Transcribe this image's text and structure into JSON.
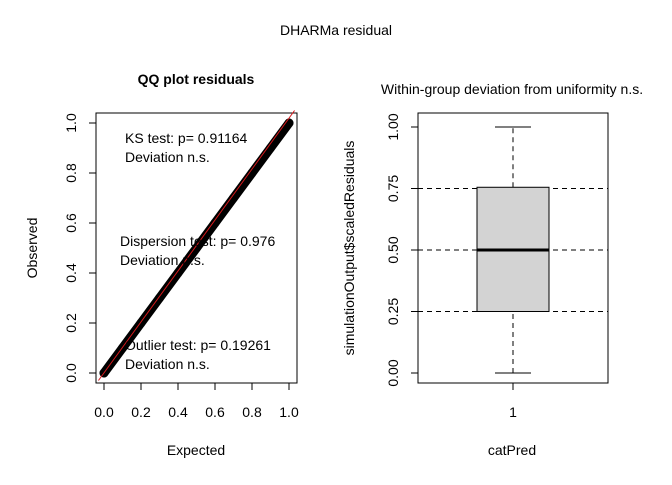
{
  "figure": {
    "title": "DHARMa residual"
  },
  "chart_data": [
    {
      "type": "scatter",
      "title": "QQ plot residuals",
      "xlabel": "Expected",
      "ylabel": "Observed",
      "xlim": [
        0,
        1
      ],
      "ylim": [
        0,
        1
      ],
      "x_ticks": [
        "0.0",
        "0.2",
        "0.4",
        "0.6",
        "0.8",
        "1.0"
      ],
      "y_ticks": [
        "0.0",
        "0.2",
        "0.4",
        "0.6",
        "0.8",
        "1.0"
      ],
      "series": [
        {
          "points": [
            [
              0.0,
              0.0
            ],
            [
              0.1,
              0.1
            ],
            [
              0.2,
              0.2
            ],
            [
              0.3,
              0.3
            ],
            [
              0.4,
              0.4
            ],
            [
              0.5,
              0.5
            ],
            [
              0.6,
              0.6
            ],
            [
              0.7,
              0.7
            ],
            [
              0.8,
              0.8
            ],
            [
              0.9,
              0.9
            ],
            [
              1.0,
              1.0
            ]
          ],
          "color": "#000000"
        }
      ],
      "reference_line": {
        "from": [
          0,
          0
        ],
        "to": [
          1,
          1
        ],
        "color": "#d7191c"
      },
      "annotations": [
        {
          "lines": [
            "KS test: p= 0.91164",
            "Deviation  n.s."
          ]
        },
        {
          "lines": [
            "Dispersion test: p= 0.976",
            "Deviation  n.s."
          ]
        },
        {
          "lines": [
            "Outlier test: p= 0.19261",
            "Deviation  n.s."
          ]
        }
      ]
    },
    {
      "type": "boxplot",
      "title": "Within-group deviation from uniformity n.s.",
      "xlabel": "catPred",
      "ylabel": "simulationOutput$scaledResiduals",
      "categories": [
        "1"
      ],
      "ylim": [
        0,
        1
      ],
      "y_ticks": [
        "0.00",
        "0.25",
        "0.50",
        "0.75",
        "1.00"
      ],
      "boxes": [
        {
          "min": 0.0,
          "q1": 0.25,
          "median": 0.5,
          "q3": 0.755,
          "max": 1.0
        }
      ],
      "reference_lines": [
        0.25,
        0.5,
        0.75
      ],
      "box_color": "#d3d3d3"
    }
  ]
}
